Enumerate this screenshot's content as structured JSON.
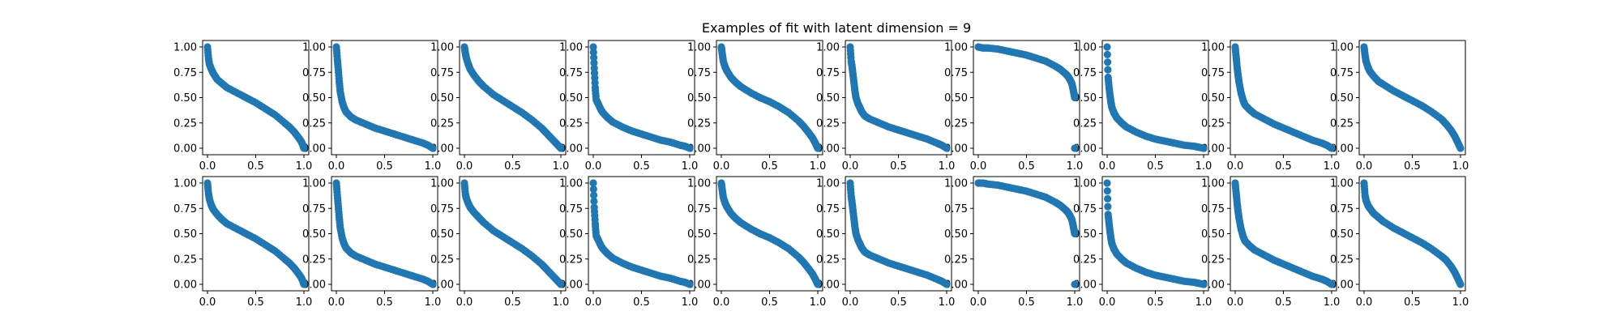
{
  "chart_data": {
    "type": "scatter",
    "title": "Examples of fit with latent dimension = 9",
    "layout": {
      "rows": 2,
      "cols": 10
    },
    "marker_color": "#1f77b4",
    "xlim": [
      0,
      1
    ],
    "ylim": [
      0,
      1
    ],
    "xticks": [
      "0.0",
      "0.5",
      "1.0"
    ],
    "yticks": [
      "0.00",
      "0.25",
      "0.50",
      "0.75",
      "1.00"
    ],
    "grid": false,
    "legend": false,
    "panels": [
      {
        "row": 0,
        "col": 0,
        "x": [
          0.0,
          0.01,
          0.02,
          0.04,
          0.06,
          0.1,
          0.15,
          0.2,
          0.3,
          0.4,
          0.5,
          0.6,
          0.7,
          0.8,
          0.85,
          0.9,
          0.94,
          0.97,
          0.99,
          1.0
        ],
        "y": [
          1.0,
          0.89,
          0.83,
          0.78,
          0.74,
          0.68,
          0.64,
          0.6,
          0.55,
          0.5,
          0.45,
          0.39,
          0.33,
          0.25,
          0.21,
          0.16,
          0.11,
          0.07,
          0.03,
          0.0
        ]
      },
      {
        "row": 0,
        "col": 1,
        "x": [
          0.0,
          0.01,
          0.02,
          0.03,
          0.04,
          0.06,
          0.08,
          0.1,
          0.15,
          0.2,
          0.3,
          0.4,
          0.5,
          0.6,
          0.7,
          0.8,
          0.9,
          0.95,
          1.0
        ],
        "y": [
          1.0,
          0.88,
          0.78,
          0.66,
          0.56,
          0.46,
          0.4,
          0.36,
          0.31,
          0.28,
          0.24,
          0.2,
          0.17,
          0.14,
          0.11,
          0.08,
          0.05,
          0.03,
          0.0
        ]
      },
      {
        "row": 0,
        "col": 2,
        "x": [
          0.0,
          0.01,
          0.02,
          0.04,
          0.06,
          0.1,
          0.15,
          0.2,
          0.3,
          0.4,
          0.5,
          0.6,
          0.7,
          0.8,
          0.85,
          0.9,
          0.94,
          0.97,
          1.0
        ],
        "y": [
          1.0,
          0.94,
          0.89,
          0.83,
          0.78,
          0.72,
          0.66,
          0.61,
          0.53,
          0.47,
          0.41,
          0.35,
          0.28,
          0.2,
          0.15,
          0.1,
          0.06,
          0.03,
          0.0
        ]
      },
      {
        "row": 0,
        "col": 3,
        "x": [
          0.0,
          0.01,
          0.02,
          0.03,
          0.05,
          0.08,
          0.1,
          0.15,
          0.2,
          0.3,
          0.4,
          0.5,
          0.6,
          0.7,
          0.8,
          0.9,
          0.95,
          1.0
        ],
        "y": [
          1.0,
          0.79,
          0.6,
          0.48,
          0.44,
          0.38,
          0.35,
          0.3,
          0.26,
          0.21,
          0.17,
          0.14,
          0.11,
          0.08,
          0.06,
          0.03,
          0.02,
          0.0
        ]
      },
      {
        "row": 0,
        "col": 4,
        "x": [
          0.0,
          0.01,
          0.02,
          0.04,
          0.06,
          0.1,
          0.15,
          0.2,
          0.3,
          0.4,
          0.5,
          0.6,
          0.7,
          0.8,
          0.85,
          0.9,
          0.94,
          0.97,
          0.99,
          1.0
        ],
        "y": [
          1.0,
          0.93,
          0.86,
          0.8,
          0.76,
          0.7,
          0.65,
          0.61,
          0.55,
          0.5,
          0.46,
          0.41,
          0.35,
          0.27,
          0.22,
          0.16,
          0.11,
          0.06,
          0.02,
          0.0
        ]
      },
      {
        "row": 0,
        "col": 5,
        "x": [
          0.0,
          0.01,
          0.02,
          0.03,
          0.04,
          0.05,
          0.06,
          0.08,
          0.1,
          0.12,
          0.15,
          0.2,
          0.3,
          0.4,
          0.5,
          0.6,
          0.7,
          0.8,
          0.9,
          0.95,
          1.0
        ],
        "y": [
          1.0,
          0.86,
          0.8,
          0.72,
          0.64,
          0.56,
          0.5,
          0.44,
          0.4,
          0.36,
          0.32,
          0.29,
          0.25,
          0.21,
          0.18,
          0.15,
          0.12,
          0.09,
          0.05,
          0.03,
          0.0
        ]
      },
      {
        "row": 0,
        "col": 6,
        "x": [
          0.0,
          0.05,
          0.1,
          0.2,
          0.3,
          0.4,
          0.5,
          0.6,
          0.7,
          0.8,
          0.85,
          0.9,
          0.93,
          0.95,
          0.97,
          0.98,
          0.99,
          1.0
        ],
        "y": [
          1.0,
          0.99,
          0.99,
          0.98,
          0.96,
          0.94,
          0.92,
          0.89,
          0.86,
          0.81,
          0.78,
          0.74,
          0.71,
          0.68,
          0.64,
          0.6,
          0.55,
          0.5
        ]
      },
      {
        "row": 0,
        "col": 6,
        "x": [
          1.0
        ],
        "y": [
          0.0
        ]
      },
      {
        "row": 0,
        "col": 7,
        "x": [
          0.0,
          0.01,
          0.02,
          0.03,
          0.04,
          0.05,
          0.07,
          0.1,
          0.15,
          0.2,
          0.3,
          0.4,
          0.5,
          0.6,
          0.7,
          0.8,
          0.9,
          0.95,
          1.0
        ],
        "y": [
          1.0,
          0.7,
          0.6,
          0.52,
          0.45,
          0.4,
          0.35,
          0.3,
          0.25,
          0.21,
          0.16,
          0.12,
          0.09,
          0.07,
          0.05,
          0.03,
          0.02,
          0.01,
          0.0
        ]
      },
      {
        "row": 0,
        "col": 8,
        "x": [
          0.0,
          0.01,
          0.02,
          0.03,
          0.04,
          0.06,
          0.08,
          0.1,
          0.15,
          0.2,
          0.3,
          0.4,
          0.5,
          0.6,
          0.7,
          0.8,
          0.9,
          0.95,
          1.0
        ],
        "y": [
          1.0,
          0.9,
          0.8,
          0.72,
          0.65,
          0.55,
          0.48,
          0.43,
          0.38,
          0.34,
          0.29,
          0.24,
          0.2,
          0.16,
          0.12,
          0.08,
          0.05,
          0.03,
          0.0
        ]
      },
      {
        "row": 0,
        "col": 9,
        "x": [
          0.0,
          0.01,
          0.02,
          0.04,
          0.06,
          0.1,
          0.15,
          0.2,
          0.3,
          0.4,
          0.5,
          0.6,
          0.7,
          0.8,
          0.85,
          0.9,
          0.94,
          0.97,
          1.0
        ],
        "y": [
          1.0,
          0.92,
          0.86,
          0.8,
          0.76,
          0.71,
          0.66,
          0.63,
          0.57,
          0.52,
          0.47,
          0.42,
          0.36,
          0.29,
          0.24,
          0.18,
          0.12,
          0.06,
          0.0
        ]
      },
      {
        "row": 1,
        "col": 0,
        "x": [
          0.0,
          0.01,
          0.02,
          0.04,
          0.06,
          0.1,
          0.15,
          0.2,
          0.3,
          0.4,
          0.5,
          0.6,
          0.7,
          0.8,
          0.85,
          0.9,
          0.94,
          0.97,
          0.99,
          1.0
        ],
        "y": [
          1.0,
          0.9,
          0.84,
          0.78,
          0.74,
          0.69,
          0.64,
          0.6,
          0.55,
          0.5,
          0.45,
          0.39,
          0.33,
          0.25,
          0.21,
          0.16,
          0.11,
          0.07,
          0.03,
          0.0
        ]
      },
      {
        "row": 1,
        "col": 1,
        "x": [
          0.0,
          0.01,
          0.02,
          0.03,
          0.04,
          0.06,
          0.08,
          0.1,
          0.15,
          0.2,
          0.3,
          0.4,
          0.5,
          0.6,
          0.7,
          0.8,
          0.9,
          0.95,
          1.0
        ],
        "y": [
          1.0,
          0.88,
          0.77,
          0.66,
          0.56,
          0.46,
          0.4,
          0.36,
          0.31,
          0.28,
          0.24,
          0.2,
          0.17,
          0.14,
          0.11,
          0.08,
          0.05,
          0.03,
          0.0
        ]
      },
      {
        "row": 1,
        "col": 2,
        "x": [
          0.0,
          0.01,
          0.02,
          0.04,
          0.06,
          0.1,
          0.15,
          0.2,
          0.3,
          0.4,
          0.5,
          0.6,
          0.7,
          0.8,
          0.85,
          0.9,
          0.94,
          0.97,
          1.0
        ],
        "y": [
          1.0,
          0.89,
          0.85,
          0.8,
          0.76,
          0.71,
          0.66,
          0.61,
          0.53,
          0.47,
          0.41,
          0.35,
          0.28,
          0.2,
          0.15,
          0.1,
          0.06,
          0.03,
          0.0
        ]
      },
      {
        "row": 1,
        "col": 3,
        "x": [
          0.0,
          0.01,
          0.02,
          0.03,
          0.05,
          0.08,
          0.1,
          0.15,
          0.2,
          0.3,
          0.4,
          0.5,
          0.6,
          0.7,
          0.8,
          0.9,
          0.95,
          1.0
        ],
        "y": [
          1.0,
          0.76,
          0.6,
          0.48,
          0.44,
          0.38,
          0.35,
          0.3,
          0.26,
          0.21,
          0.17,
          0.14,
          0.11,
          0.08,
          0.06,
          0.03,
          0.02,
          0.0
        ]
      },
      {
        "row": 1,
        "col": 4,
        "x": [
          0.0,
          0.01,
          0.02,
          0.04,
          0.06,
          0.1,
          0.15,
          0.2,
          0.3,
          0.4,
          0.5,
          0.6,
          0.7,
          0.8,
          0.85,
          0.9,
          0.94,
          0.97,
          0.99,
          1.0
        ],
        "y": [
          1.0,
          0.93,
          0.86,
          0.8,
          0.76,
          0.7,
          0.65,
          0.61,
          0.55,
          0.5,
          0.46,
          0.41,
          0.35,
          0.27,
          0.22,
          0.16,
          0.11,
          0.06,
          0.02,
          0.0
        ]
      },
      {
        "row": 1,
        "col": 5,
        "x": [
          0.0,
          0.01,
          0.02,
          0.03,
          0.04,
          0.05,
          0.06,
          0.08,
          0.1,
          0.12,
          0.15,
          0.2,
          0.3,
          0.4,
          0.5,
          0.6,
          0.7,
          0.8,
          0.9,
          0.95,
          1.0
        ],
        "y": [
          1.0,
          0.87,
          0.8,
          0.72,
          0.64,
          0.56,
          0.5,
          0.44,
          0.4,
          0.36,
          0.32,
          0.29,
          0.25,
          0.21,
          0.18,
          0.15,
          0.12,
          0.09,
          0.05,
          0.03,
          0.0
        ]
      },
      {
        "row": 1,
        "col": 6,
        "x": [
          0.0,
          0.05,
          0.1,
          0.2,
          0.3,
          0.4,
          0.5,
          0.6,
          0.7,
          0.8,
          0.85,
          0.9,
          0.93,
          0.95,
          0.97,
          0.98,
          0.99,
          1.0
        ],
        "y": [
          1.0,
          1.0,
          0.99,
          0.98,
          0.96,
          0.94,
          0.92,
          0.89,
          0.86,
          0.81,
          0.78,
          0.74,
          0.71,
          0.68,
          0.64,
          0.6,
          0.55,
          0.5
        ]
      },
      {
        "row": 1,
        "col": 6,
        "x": [
          1.0
        ],
        "y": [
          0.0
        ]
      },
      {
        "row": 1,
        "col": 7,
        "x": [
          0.0,
          0.01,
          0.02,
          0.03,
          0.04,
          0.05,
          0.07,
          0.1,
          0.15,
          0.2,
          0.3,
          0.4,
          0.5,
          0.6,
          0.7,
          0.8,
          0.9,
          0.95,
          1.0
        ],
        "y": [
          1.0,
          0.69,
          0.6,
          0.52,
          0.45,
          0.4,
          0.35,
          0.3,
          0.25,
          0.21,
          0.16,
          0.12,
          0.09,
          0.07,
          0.05,
          0.03,
          0.02,
          0.01,
          0.0
        ]
      },
      {
        "row": 1,
        "col": 8,
        "x": [
          0.0,
          0.01,
          0.02,
          0.03,
          0.04,
          0.06,
          0.08,
          0.1,
          0.15,
          0.2,
          0.3,
          0.4,
          0.5,
          0.6,
          0.7,
          0.8,
          0.9,
          0.95,
          1.0
        ],
        "y": [
          1.0,
          0.9,
          0.8,
          0.72,
          0.65,
          0.55,
          0.48,
          0.43,
          0.38,
          0.34,
          0.29,
          0.24,
          0.2,
          0.16,
          0.12,
          0.08,
          0.05,
          0.03,
          0.0
        ]
      },
      {
        "row": 1,
        "col": 9,
        "x": [
          0.0,
          0.01,
          0.02,
          0.04,
          0.06,
          0.1,
          0.15,
          0.2,
          0.3,
          0.4,
          0.5,
          0.6,
          0.7,
          0.8,
          0.85,
          0.9,
          0.94,
          0.97,
          1.0
        ],
        "y": [
          1.0,
          0.88,
          0.83,
          0.78,
          0.75,
          0.7,
          0.66,
          0.62,
          0.56,
          0.51,
          0.46,
          0.41,
          0.35,
          0.28,
          0.24,
          0.18,
          0.12,
          0.06,
          0.0
        ]
      }
    ]
  }
}
